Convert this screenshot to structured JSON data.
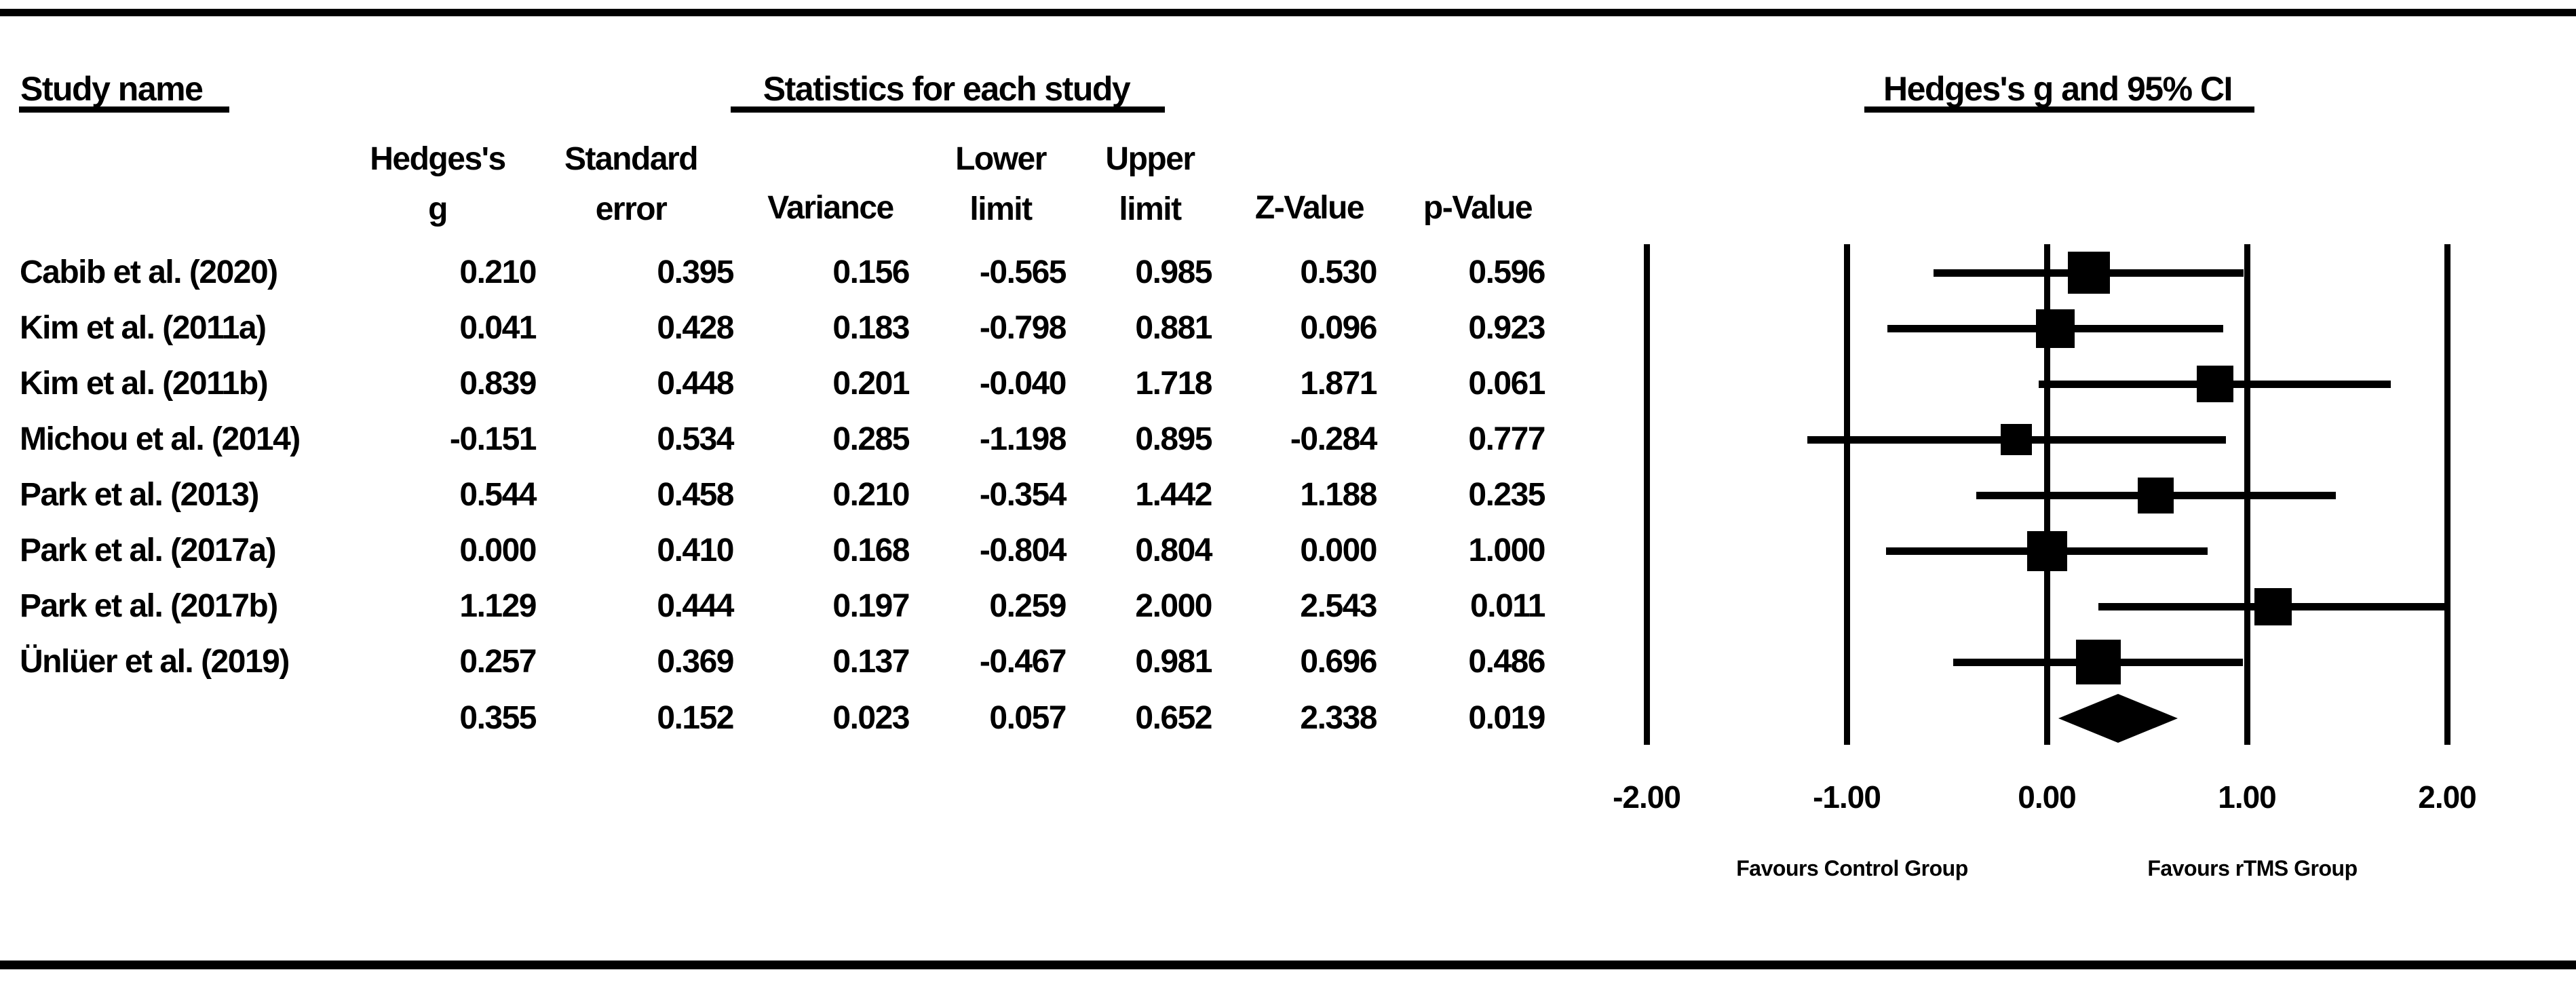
{
  "header": {
    "study_col_title": "Study name",
    "stats_col_title": "Statistics for each study",
    "ci_col_title": "Hedges's g and 95% CI"
  },
  "columns": [
    {
      "id": "g",
      "lines": [
        "Hedges's",
        "g"
      ]
    },
    {
      "id": "se",
      "lines": [
        "Standard",
        "error"
      ]
    },
    {
      "id": "variance",
      "lines": [
        "",
        "Variance"
      ]
    },
    {
      "id": "lower",
      "lines": [
        "Lower",
        "limit"
      ]
    },
    {
      "id": "upper",
      "lines": [
        "Upper",
        "limit"
      ]
    },
    {
      "id": "z",
      "lines": [
        "",
        "Z-Value"
      ]
    },
    {
      "id": "p",
      "lines": [
        "",
        "p-Value"
      ]
    }
  ],
  "chart_data": {
    "type": "forest_plot",
    "title": "Hedges's g and 95% CI",
    "effect_measure": "Hedges's g",
    "xlim": [
      -2.0,
      2.0
    ],
    "x_ticks": [
      "-2.00",
      "-1.00",
      "0.00",
      "1.00",
      "2.00"
    ],
    "x_tick_values": [
      -2,
      -1,
      0,
      1,
      2
    ],
    "grid": "vertical-lines-at-ticks",
    "studies": [
      {
        "name": "Cabib et al. (2020)",
        "g": "0.210",
        "se": "0.395",
        "variance": "0.156",
        "lower": "-0.565",
        "upper": "0.985",
        "z": "0.530",
        "p": "0.596",
        "g_num": 0.21,
        "lower_num": -0.565,
        "upper_num": 0.985,
        "marker_px": 62
      },
      {
        "name": "Kim et al. (2011a)",
        "g": "0.041",
        "se": "0.428",
        "variance": "0.183",
        "lower": "-0.798",
        "upper": "0.881",
        "z": "0.096",
        "p": "0.923",
        "g_num": 0.041,
        "lower_num": -0.798,
        "upper_num": 0.881,
        "marker_px": 57
      },
      {
        "name": "Kim et al. (2011b)",
        "g": "0.839",
        "se": "0.448",
        "variance": "0.201",
        "lower": "-0.040",
        "upper": "1.718",
        "z": "1.871",
        "p": "0.061",
        "g_num": 0.839,
        "lower_num": -0.04,
        "upper_num": 1.718,
        "marker_px": 54
      },
      {
        "name": "Michou et al. (2014)",
        "g": "-0.151",
        "se": "0.534",
        "variance": "0.285",
        "lower": "-1.198",
        "upper": "0.895",
        "z": "-0.284",
        "p": "0.777",
        "g_num": -0.151,
        "lower_num": -1.198,
        "upper_num": 0.895,
        "marker_px": 46
      },
      {
        "name": "Park et al. (2013)",
        "g": "0.544",
        "se": "0.458",
        "variance": "0.210",
        "lower": "-0.354",
        "upper": "1.442",
        "z": "1.188",
        "p": "0.235",
        "g_num": 0.544,
        "lower_num": -0.354,
        "upper_num": 1.442,
        "marker_px": 53
      },
      {
        "name": "Park et al. (2017a)",
        "g": "0.000",
        "se": "0.410",
        "variance": "0.168",
        "lower": "-0.804",
        "upper": "0.804",
        "z": "0.000",
        "p": "1.000",
        "g_num": 0.0,
        "lower_num": -0.804,
        "upper_num": 0.804,
        "marker_px": 59
      },
      {
        "name": "Park et al. (2017b)",
        "g": "1.129",
        "se": "0.444",
        "variance": "0.197",
        "lower": "0.259",
        "upper": "2.000",
        "z": "2.543",
        "p": "0.011",
        "g_num": 1.129,
        "lower_num": 0.259,
        "upper_num": 2.0,
        "marker_px": 55
      },
      {
        "name": "Ünlüer et al. (2019)",
        "g": "0.257",
        "se": "0.369",
        "variance": "0.137",
        "lower": "-0.467",
        "upper": "0.981",
        "z": "0.696",
        "p": "0.486",
        "g_num": 0.257,
        "lower_num": -0.467,
        "upper_num": 0.981,
        "marker_px": 66
      }
    ],
    "summary": {
      "g": "0.355",
      "se": "0.152",
      "variance": "0.023",
      "lower": "0.057",
      "upper": "0.652",
      "z": "2.338",
      "p": "0.019",
      "g_num": 0.355,
      "lower_num": 0.057,
      "upper_num": 0.652,
      "marker": "diamond"
    },
    "footer_labels": {
      "left": "Favours Control Group",
      "right": "Favours rTMS Group"
    }
  }
}
